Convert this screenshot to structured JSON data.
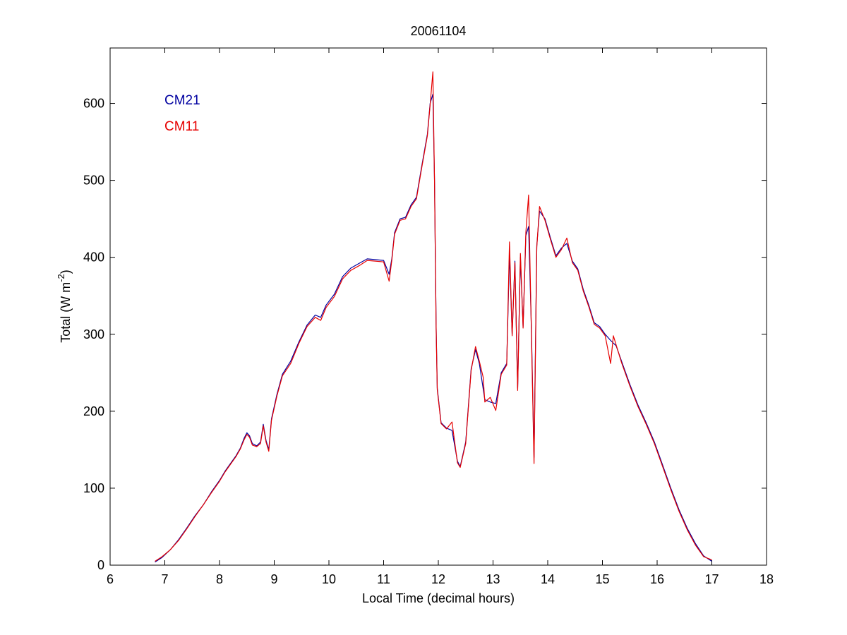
{
  "chart_data": {
    "type": "line",
    "title": "20061104",
    "xlabel": "Local Time (decimal hours)",
    "ylabel": "Total (W m",
    "ylabel_sup": "-2",
    "ylabel_close": ")",
    "xlim": [
      6,
      18
    ],
    "ylim": [
      0,
      672
    ],
    "xticks": [
      6,
      7,
      8,
      9,
      10,
      11,
      12,
      13,
      14,
      15,
      16,
      17,
      18
    ],
    "yticks": [
      0,
      100,
      200,
      300,
      400,
      500,
      600
    ],
    "grid": false,
    "legend_placement": "top-left",
    "series": [
      {
        "name": "CM21",
        "color": "#0000a0",
        "points": [
          [
            6.82,
            4
          ],
          [
            6.95,
            10
          ],
          [
            7.1,
            20
          ],
          [
            7.25,
            33
          ],
          [
            7.4,
            48
          ],
          [
            7.55,
            64
          ],
          [
            7.7,
            78
          ],
          [
            7.85,
            95
          ],
          [
            8.0,
            110
          ],
          [
            8.1,
            122
          ],
          [
            8.2,
            132
          ],
          [
            8.3,
            142
          ],
          [
            8.38,
            152
          ],
          [
            8.45,
            165
          ],
          [
            8.5,
            172
          ],
          [
            8.55,
            168
          ],
          [
            8.6,
            158
          ],
          [
            8.68,
            155
          ],
          [
            8.75,
            160
          ],
          [
            8.8,
            183
          ],
          [
            8.85,
            162
          ],
          [
            8.9,
            150
          ],
          [
            8.95,
            190
          ],
          [
            9.05,
            222
          ],
          [
            9.15,
            248
          ],
          [
            9.3,
            265
          ],
          [
            9.45,
            290
          ],
          [
            9.6,
            312
          ],
          [
            9.75,
            325
          ],
          [
            9.85,
            322
          ],
          [
            9.95,
            338
          ],
          [
            10.1,
            352
          ],
          [
            10.25,
            375
          ],
          [
            10.4,
            386
          ],
          [
            10.55,
            392
          ],
          [
            10.7,
            398
          ],
          [
            10.85,
            397
          ],
          [
            11.0,
            396
          ],
          [
            11.1,
            378
          ],
          [
            11.15,
            398
          ],
          [
            11.2,
            432
          ],
          [
            11.3,
            450
          ],
          [
            11.4,
            452
          ],
          [
            11.5,
            468
          ],
          [
            11.6,
            478
          ],
          [
            11.7,
            520
          ],
          [
            11.8,
            560
          ],
          [
            11.85,
            600
          ],
          [
            11.9,
            612
          ],
          [
            11.93,
            500
          ],
          [
            11.96,
            310
          ],
          [
            11.98,
            230
          ],
          [
            12.05,
            185
          ],
          [
            12.15,
            178
          ],
          [
            12.25,
            175
          ],
          [
            12.35,
            135
          ],
          [
            12.4,
            128
          ],
          [
            12.5,
            160
          ],
          [
            12.6,
            255
          ],
          [
            12.68,
            280
          ],
          [
            12.75,
            262
          ],
          [
            12.85,
            215
          ],
          [
            12.95,
            212
          ],
          [
            13.05,
            210
          ],
          [
            13.15,
            250
          ],
          [
            13.25,
            262
          ],
          [
            13.3,
            405
          ],
          [
            13.35,
            300
          ],
          [
            13.4,
            395
          ],
          [
            13.45,
            230
          ],
          [
            13.5,
            400
          ],
          [
            13.55,
            310
          ],
          [
            13.6,
            428
          ],
          [
            13.65,
            440
          ],
          [
            13.7,
            310
          ],
          [
            13.75,
            140
          ],
          [
            13.8,
            415
          ],
          [
            13.85,
            460
          ],
          [
            13.95,
            450
          ],
          [
            14.05,
            425
          ],
          [
            14.15,
            402
          ],
          [
            14.25,
            412
          ],
          [
            14.35,
            418
          ],
          [
            14.45,
            395
          ],
          [
            14.55,
            385
          ],
          [
            14.65,
            358
          ],
          [
            14.75,
            338
          ],
          [
            14.85,
            315
          ],
          [
            14.95,
            310
          ],
          [
            15.05,
            300
          ],
          [
            15.15,
            292
          ],
          [
            15.25,
            285
          ],
          [
            15.35,
            265
          ],
          [
            15.5,
            235
          ],
          [
            15.65,
            208
          ],
          [
            15.8,
            185
          ],
          [
            15.95,
            160
          ],
          [
            16.1,
            130
          ],
          [
            16.25,
            100
          ],
          [
            16.4,
            72
          ],
          [
            16.55,
            48
          ],
          [
            16.7,
            28
          ],
          [
            16.85,
            12
          ],
          [
            17.0,
            5
          ]
        ]
      },
      {
        "name": "CM11",
        "color": "#e60000",
        "points": [
          [
            6.82,
            5
          ],
          [
            6.95,
            11
          ],
          [
            7.1,
            20
          ],
          [
            7.25,
            32
          ],
          [
            7.4,
            47
          ],
          [
            7.55,
            63
          ],
          [
            7.7,
            78
          ],
          [
            7.85,
            94
          ],
          [
            8.0,
            109
          ],
          [
            8.1,
            121
          ],
          [
            8.2,
            131
          ],
          [
            8.3,
            141
          ],
          [
            8.38,
            151
          ],
          [
            8.45,
            163
          ],
          [
            8.5,
            170
          ],
          [
            8.55,
            166
          ],
          [
            8.6,
            156
          ],
          [
            8.68,
            154
          ],
          [
            8.75,
            158
          ],
          [
            8.8,
            181
          ],
          [
            8.85,
            160
          ],
          [
            8.9,
            148
          ],
          [
            8.95,
            188
          ],
          [
            9.05,
            220
          ],
          [
            9.15,
            246
          ],
          [
            9.3,
            262
          ],
          [
            9.45,
            288
          ],
          [
            9.6,
            310
          ],
          [
            9.75,
            322
          ],
          [
            9.85,
            318
          ],
          [
            9.95,
            335
          ],
          [
            10.1,
            349
          ],
          [
            10.25,
            372
          ],
          [
            10.4,
            383
          ],
          [
            10.55,
            389
          ],
          [
            10.7,
            396
          ],
          [
            10.85,
            395
          ],
          [
            11.0,
            394
          ],
          [
            11.1,
            369
          ],
          [
            11.15,
            396
          ],
          [
            11.2,
            430
          ],
          [
            11.3,
            448
          ],
          [
            11.4,
            450
          ],
          [
            11.5,
            466
          ],
          [
            11.6,
            476
          ],
          [
            11.7,
            518
          ],
          [
            11.8,
            558
          ],
          [
            11.85,
            598
          ],
          [
            11.9,
            641
          ],
          [
            11.93,
            498
          ],
          [
            11.96,
            308
          ],
          [
            11.98,
            228
          ],
          [
            12.05,
            184
          ],
          [
            12.15,
            177
          ],
          [
            12.25,
            186
          ],
          [
            12.35,
            133
          ],
          [
            12.4,
            127
          ],
          [
            12.5,
            158
          ],
          [
            12.6,
            253
          ],
          [
            12.68,
            284
          ],
          [
            12.75,
            265
          ],
          [
            12.82,
            244
          ],
          [
            12.85,
            212
          ],
          [
            12.95,
            218
          ],
          [
            13.05,
            201
          ],
          [
            13.15,
            248
          ],
          [
            13.25,
            260
          ],
          [
            13.3,
            420
          ],
          [
            13.35,
            298
          ],
          [
            13.4,
            393
          ],
          [
            13.45,
            227
          ],
          [
            13.5,
            405
          ],
          [
            13.55,
            308
          ],
          [
            13.6,
            432
          ],
          [
            13.65,
            481
          ],
          [
            13.7,
            305
          ],
          [
            13.75,
            132
          ],
          [
            13.8,
            413
          ],
          [
            13.85,
            466
          ],
          [
            13.95,
            448
          ],
          [
            14.05,
            423
          ],
          [
            14.15,
            400
          ],
          [
            14.25,
            410
          ],
          [
            14.35,
            425
          ],
          [
            14.45,
            393
          ],
          [
            14.55,
            383
          ],
          [
            14.65,
            356
          ],
          [
            14.75,
            336
          ],
          [
            14.85,
            313
          ],
          [
            14.95,
            308
          ],
          [
            15.05,
            298
          ],
          [
            15.15,
            262
          ],
          [
            15.2,
            298
          ],
          [
            15.35,
            263
          ],
          [
            15.5,
            233
          ],
          [
            15.65,
            206
          ],
          [
            15.8,
            183
          ],
          [
            15.95,
            158
          ],
          [
            16.1,
            128
          ],
          [
            16.25,
            98
          ],
          [
            16.4,
            70
          ],
          [
            16.55,
            46
          ],
          [
            16.7,
            26
          ],
          [
            16.85,
            11
          ],
          [
            17.0,
            7
          ]
        ]
      }
    ]
  }
}
